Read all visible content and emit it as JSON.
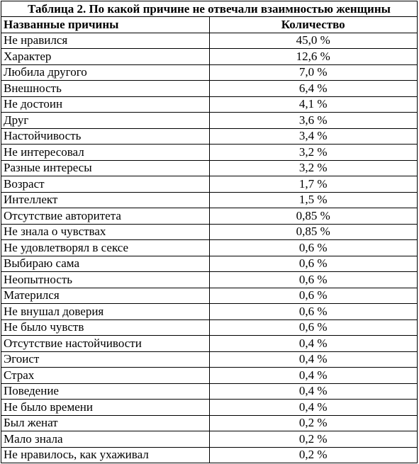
{
  "table": {
    "title": "Таблица 2. По какой причине не отвечали взаимностью женщины",
    "headers": [
      "Названные причины",
      "Количество"
    ],
    "rows": [
      {
        "reason": "Не нравился",
        "value": "45,0 %"
      },
      {
        "reason": "Характер",
        "value": "12,6 %"
      },
      {
        "reason": "Любила другого",
        "value": "7,0 %"
      },
      {
        "reason": "Внешность",
        "value": "6,4 %"
      },
      {
        "reason": "Не достоин",
        "value": "4,1 %"
      },
      {
        "reason": "Друг",
        "value": "3,6 %"
      },
      {
        "reason": "Настойчивость",
        "value": "3,4 %"
      },
      {
        "reason": "Не интересовал",
        "value": "3,2 %"
      },
      {
        "reason": "Разные интересы",
        "value": "3,2 %"
      },
      {
        "reason": "Возраст",
        "value": "1,7 %"
      },
      {
        "reason": "Интеллект",
        "value": "1,5 %"
      },
      {
        "reason": "Отсутствие авторитета",
        "value": "0,85 %"
      },
      {
        "reason": "Не знала о чувствах",
        "value": "0,85 %"
      },
      {
        "reason": "Не удовлетворял в сексе",
        "value": "0,6 %"
      },
      {
        "reason": "Выбираю сама",
        "value": "0,6 %"
      },
      {
        "reason": "Неопытность",
        "value": "0,6 %"
      },
      {
        "reason": "Матерился",
        "value": "0,6 %"
      },
      {
        "reason": "Не внушал доверия",
        "value": "0,6 %"
      },
      {
        "reason": "Не было чувств",
        "value": "0,6 %"
      },
      {
        "reason": "Отсутствие настойчивости",
        "value": "0,4 %"
      },
      {
        "reason": "Эгоист",
        "value": "0,4 %"
      },
      {
        "reason": "Страх",
        "value": "0,4 %"
      },
      {
        "reason": "Поведение",
        "value": "0,4 %"
      },
      {
        "reason": "Не было времени",
        "value": "0,4 %"
      },
      {
        "reason": "Был женат",
        "value": "0,2 %"
      },
      {
        "reason": "Мало знала",
        "value": "0,2 %"
      },
      {
        "reason": "Не нравилось, как ухаживал",
        "value": "0,2 %"
      }
    ]
  }
}
